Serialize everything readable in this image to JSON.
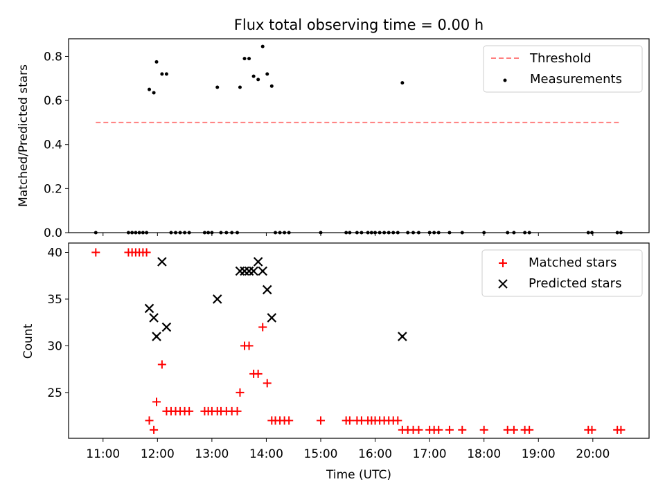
{
  "title": "Flux total observing time = 0.00 h",
  "colors": {
    "threshold": "#ff7f7f",
    "measurements": "#000000",
    "matched": "#ff0000",
    "predicted": "#000000",
    "axes": "#000000"
  },
  "x_ticks": [
    "11:00",
    "12:00",
    "13:00",
    "14:00",
    "15:00",
    "16:00",
    "17:00",
    "18:00",
    "19:00",
    "20:00"
  ],
  "chart_data": [
    {
      "type": "scatter",
      "ylabel": "Matched/Predicted stars",
      "xlim": [
        "10:22",
        "21:02"
      ],
      "ylim": [
        0,
        0.88
      ],
      "y_ticks": [
        "0.0",
        "0.2",
        "0.4",
        "0.6",
        "0.8"
      ],
      "legend_position": "top-right",
      "threshold": {
        "name": "Threshold",
        "value": 0.5,
        "x_range": [
          "10:52",
          "20:30"
        ]
      },
      "series": [
        {
          "name": "Measurements",
          "points": [
            [
              "10:52",
              0
            ],
            [
              "11:28",
              0
            ],
            [
              "11:32",
              0
            ],
            [
              "11:36",
              0
            ],
            [
              "11:40",
              0
            ],
            [
              "11:44",
              0
            ],
            [
              "11:48",
              0
            ],
            [
              "11:51",
              0.65
            ],
            [
              "11:56",
              0.635
            ],
            [
              "11:59",
              0.775
            ],
            [
              "12:05",
              0.72
            ],
            [
              "12:10",
              0.72
            ],
            [
              "12:15",
              0
            ],
            [
              "12:20",
              0
            ],
            [
              "12:25",
              0
            ],
            [
              "12:30",
              0
            ],
            [
              "12:35",
              0
            ],
            [
              "12:52",
              0
            ],
            [
              "12:56",
              0
            ],
            [
              "13:00",
              0
            ],
            [
              "13:06",
              0.66
            ],
            [
              "13:10",
              0
            ],
            [
              "13:16",
              0
            ],
            [
              "13:22",
              0
            ],
            [
              "13:28",
              0
            ],
            [
              "13:31",
              0.66
            ],
            [
              "13:36",
              0.79
            ],
            [
              "13:41",
              0.79
            ],
            [
              "13:46",
              0.71
            ],
            [
              "13:51",
              0.695
            ],
            [
              "13:56",
              0.845
            ],
            [
              "14:01",
              0.72
            ],
            [
              "14:06",
              0.665
            ],
            [
              "14:10",
              0
            ],
            [
              "14:15",
              0
            ],
            [
              "14:20",
              0
            ],
            [
              "14:25",
              0
            ],
            [
              "15:00",
              0
            ],
            [
              "15:28",
              0
            ],
            [
              "15:32",
              0
            ],
            [
              "15:40",
              0
            ],
            [
              "15:45",
              0
            ],
            [
              "15:52",
              0
            ],
            [
              "15:56",
              0
            ],
            [
              "16:00",
              0
            ],
            [
              "16:05",
              0
            ],
            [
              "16:10",
              0
            ],
            [
              "16:15",
              0
            ],
            [
              "16:20",
              0
            ],
            [
              "16:25",
              0
            ],
            [
              "16:30",
              0.68
            ],
            [
              "16:36",
              0
            ],
            [
              "16:42",
              0
            ],
            [
              "16:48",
              0
            ],
            [
              "17:00",
              0
            ],
            [
              "17:05",
              0
            ],
            [
              "17:10",
              0
            ],
            [
              "17:22",
              0
            ],
            [
              "17:36",
              0
            ],
            [
              "18:00",
              0
            ],
            [
              "18:26",
              0
            ],
            [
              "18:33",
              0
            ],
            [
              "18:45",
              0
            ],
            [
              "18:50",
              0
            ],
            [
              "19:55",
              0
            ],
            [
              "19:59",
              0
            ],
            [
              "20:27",
              0
            ],
            [
              "20:31",
              0
            ]
          ]
        }
      ]
    },
    {
      "type": "scatter",
      "xlabel": "Time (UTC)",
      "ylabel": "Count",
      "xlim": [
        "10:22",
        "21:02"
      ],
      "ylim": [
        20.1,
        41.0
      ],
      "y_ticks": [
        "25",
        "30",
        "35",
        "40"
      ],
      "legend_position": "top-right",
      "series": [
        {
          "name": "Matched stars",
          "marker": "plus",
          "points": [
            [
              "10:52",
              40
            ],
            [
              "11:28",
              40
            ],
            [
              "11:32",
              40
            ],
            [
              "11:36",
              40
            ],
            [
              "11:40",
              40
            ],
            [
              "11:44",
              40
            ],
            [
              "11:48",
              40
            ],
            [
              "11:51",
              22
            ],
            [
              "11:56",
              21
            ],
            [
              "11:59",
              24
            ],
            [
              "12:05",
              28
            ],
            [
              "12:10",
              23
            ],
            [
              "12:15",
              23
            ],
            [
              "12:20",
              23
            ],
            [
              "12:25",
              23
            ],
            [
              "12:30",
              23
            ],
            [
              "12:35",
              23
            ],
            [
              "12:52",
              23
            ],
            [
              "12:56",
              23
            ],
            [
              "13:00",
              23
            ],
            [
              "13:06",
              23
            ],
            [
              "13:10",
              23
            ],
            [
              "13:16",
              23
            ],
            [
              "13:22",
              23
            ],
            [
              "13:28",
              23
            ],
            [
              "13:31",
              25
            ],
            [
              "13:36",
              30
            ],
            [
              "13:41",
              30
            ],
            [
              "13:46",
              27
            ],
            [
              "13:51",
              27
            ],
            [
              "13:56",
              32
            ],
            [
              "14:01",
              26
            ],
            [
              "14:06",
              22
            ],
            [
              "14:10",
              22
            ],
            [
              "14:15",
              22
            ],
            [
              "14:20",
              22
            ],
            [
              "14:25",
              22
            ],
            [
              "15:00",
              22
            ],
            [
              "15:28",
              22
            ],
            [
              "15:32",
              22
            ],
            [
              "15:40",
              22
            ],
            [
              "15:45",
              22
            ],
            [
              "15:52",
              22
            ],
            [
              "15:56",
              22
            ],
            [
              "16:00",
              22
            ],
            [
              "16:05",
              22
            ],
            [
              "16:10",
              22
            ],
            [
              "16:15",
              22
            ],
            [
              "16:20",
              22
            ],
            [
              "16:25",
              22
            ],
            [
              "16:30",
              21
            ],
            [
              "16:36",
              21
            ],
            [
              "16:42",
              21
            ],
            [
              "16:48",
              21
            ],
            [
              "17:00",
              21
            ],
            [
              "17:05",
              21
            ],
            [
              "17:10",
              21
            ],
            [
              "17:22",
              21
            ],
            [
              "17:36",
              21
            ],
            [
              "18:00",
              21
            ],
            [
              "18:26",
              21
            ],
            [
              "18:33",
              21
            ],
            [
              "18:45",
              21
            ],
            [
              "18:50",
              21
            ],
            [
              "19:55",
              21
            ],
            [
              "19:59",
              21
            ],
            [
              "20:27",
              21
            ],
            [
              "20:31",
              21
            ]
          ]
        },
        {
          "name": "Predicted stars",
          "marker": "x",
          "points": [
            [
              "11:51",
              34
            ],
            [
              "11:56",
              33
            ],
            [
              "11:59",
              31
            ],
            [
              "12:05",
              39
            ],
            [
              "12:10",
              32
            ],
            [
              "13:06",
              35
            ],
            [
              "13:31",
              38
            ],
            [
              "13:36",
              38
            ],
            [
              "13:41",
              38
            ],
            [
              "13:46",
              38
            ],
            [
              "13:51",
              39
            ],
            [
              "13:56",
              38
            ],
            [
              "14:01",
              36
            ],
            [
              "14:06",
              33
            ],
            [
              "16:30",
              31
            ]
          ]
        }
      ]
    }
  ]
}
